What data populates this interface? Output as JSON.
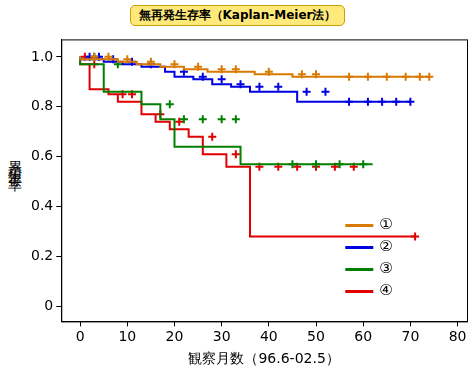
{
  "chart_data": {
    "type": "line",
    "title": "無再発生存率（Kaplan-Meier法）",
    "y_label": "累積生存率",
    "x_label": "観察月数（96.6-02.5）",
    "xlim": [
      -4,
      82
    ],
    "xticks": [
      0,
      10,
      20,
      30,
      40,
      50,
      60,
      70,
      80
    ],
    "ylim": [
      -0.06,
      1.07
    ],
    "yticks": [
      0,
      0.2,
      0.4,
      0.6,
      0.8,
      {
        "value": 1,
        "label": "1.0"
      }
    ],
    "grid": false,
    "legend": "lower right",
    "line_style": "step",
    "marker": "cross",
    "series": [
      {
        "name": "①",
        "color": "#d97a00",
        "x": [
          0,
          8,
          12,
          17,
          22,
          27,
          37,
          45,
          54,
          74
        ],
        "values": [
          1,
          0.99,
          0.98,
          0.97,
          0.96,
          0.95,
          0.94,
          0.93,
          0.92,
          0.92
        ],
        "censored": {
          "x": [
            3,
            6,
            10,
            15,
            20,
            25,
            30,
            33,
            40,
            47,
            50,
            57,
            61,
            65,
            69,
            72,
            74
          ],
          "values": [
            1,
            1,
            0.99,
            0.98,
            0.97,
            0.96,
            0.95,
            0.95,
            0.94,
            0.93,
            0.93,
            0.92,
            0.92,
            0.92,
            0.92,
            0.92,
            0.92
          ]
        }
      },
      {
        "name": "②",
        "color": "#0000e0",
        "x": [
          0,
          5,
          9,
          13,
          18,
          20,
          24,
          28,
          32,
          36,
          46,
          55,
          70
        ],
        "values": [
          1,
          0.99,
          0.98,
          0.97,
          0.96,
          0.94,
          0.92,
          0.91,
          0.89,
          0.88,
          0.86,
          0.82,
          0.82
        ],
        "censored": {
          "x": [
            2,
            4,
            7,
            11,
            15,
            22,
            26,
            30,
            34,
            38,
            42,
            48,
            52,
            57,
            61,
            64,
            67,
            70
          ],
          "values": [
            1,
            1,
            0.99,
            0.98,
            0.97,
            0.94,
            0.92,
            0.91,
            0.89,
            0.88,
            0.88,
            0.86,
            0.86,
            0.82,
            0.82,
            0.82,
            0.82,
            0.82
          ]
        }
      },
      {
        "name": "③",
        "color": "#008000",
        "x": [
          0,
          5,
          13,
          17,
          20,
          34,
          40,
          62
        ],
        "values": [
          1,
          0.97,
          0.86,
          0.81,
          0.75,
          0.64,
          0.57,
          0.57
        ],
        "censored": {
          "x": [
            3,
            8,
            19,
            22,
            26,
            30,
            33,
            45,
            50,
            55,
            60
          ],
          "values": [
            1,
            0.97,
            0.81,
            0.75,
            0.75,
            0.75,
            0.75,
            0.57,
            0.57,
            0.57,
            0.57
          ]
        }
      },
      {
        "name": "④",
        "color": "#e00000",
        "x": [
          0,
          2,
          6,
          8,
          13,
          16,
          19,
          23,
          26,
          31,
          36,
          66,
          71
        ],
        "values": [
          1,
          0.97,
          0.87,
          0.85,
          0.82,
          0.77,
          0.74,
          0.71,
          0.68,
          0.61,
          0.56,
          0.28,
          0.28
        ],
        "censored": {
          "x": [
            1,
            3,
            9,
            11,
            17,
            21,
            28,
            33,
            38,
            42,
            46,
            50,
            54,
            58,
            71
          ],
          "values": [
            1,
            0.97,
            0.85,
            0.85,
            0.77,
            0.74,
            0.68,
            0.61,
            0.56,
            0.56,
            0.56,
            0.56,
            0.56,
            0.56,
            0.28
          ]
        }
      }
    ]
  }
}
